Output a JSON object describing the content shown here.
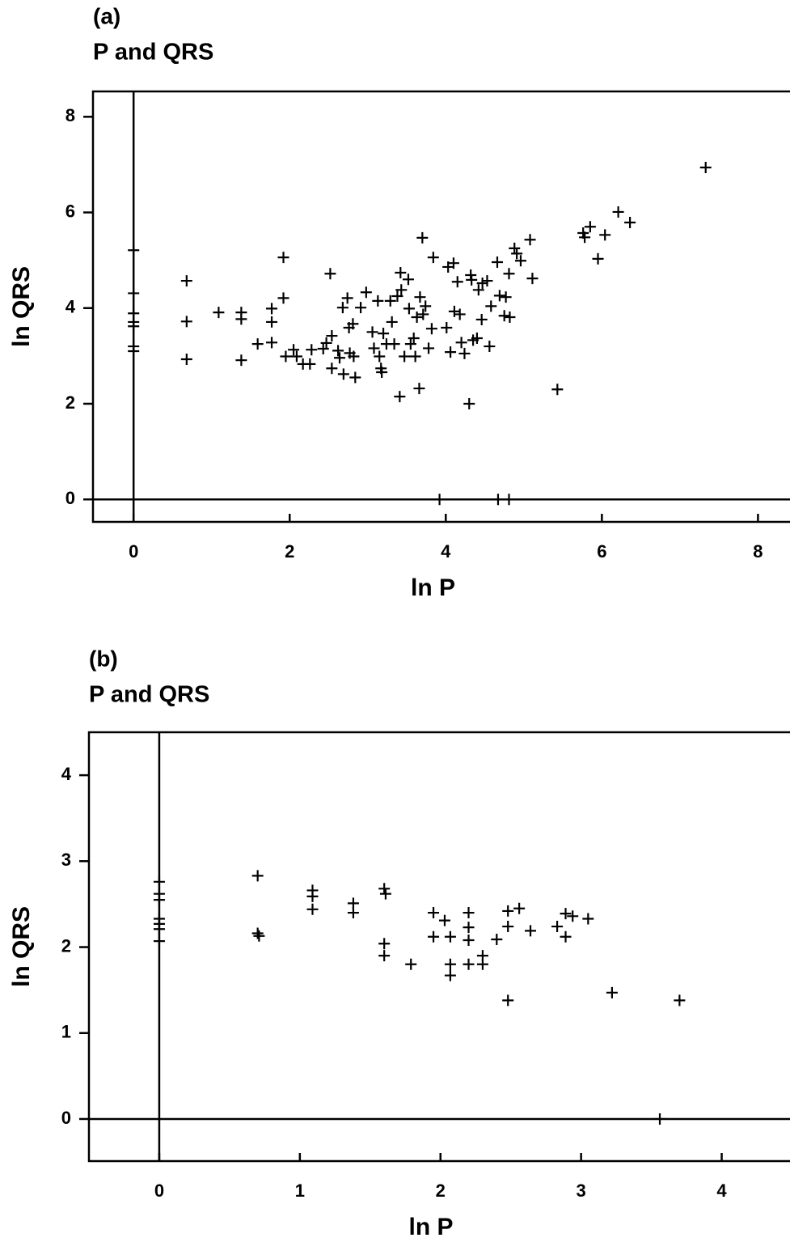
{
  "chart_data": [
    {
      "type": "scatter",
      "panel_label": "(a)",
      "title": "P and QRS",
      "xlabel": "ln P",
      "ylabel": "ln QRS",
      "xlim": [
        -0.52,
        8.4
      ],
      "ylim": [
        -0.47,
        8.53
      ],
      "xticks": [
        0,
        2,
        4,
        6,
        8
      ],
      "yticks": [
        0,
        2,
        4,
        6,
        8
      ],
      "zero_lines": true,
      "color": "#000000",
      "x": [
        0,
        0,
        0,
        0,
        0,
        0,
        0,
        0.68,
        0.68,
        0.68,
        1.09,
        1.38,
        1.38,
        1.38,
        1.59,
        1.77,
        1.77,
        1.77,
        1.92,
        1.92,
        1.95,
        2.05,
        2.09,
        2.17,
        2.28,
        2.26,
        2.43,
        2.47,
        2.52,
        2.54,
        2.54,
        2.62,
        2.64,
        2.68,
        2.69,
        2.74,
        2.76,
        2.77,
        2.81,
        2.82,
        2.84,
        2.91,
        2.98,
        3.06,
        3.08,
        3.13,
        3.15,
        3.17,
        3.18,
        3.2,
        3.24,
        3.29,
        3.31,
        3.34,
        3.38,
        3.41,
        3.42,
        3.43,
        3.47,
        3.52,
        3.53,
        3.55,
        3.59,
        3.61,
        3.63,
        3.66,
        3.67,
        3.7,
        3.71,
        3.74,
        3.78,
        3.82,
        3.84,
        4.01,
        4.03,
        4.06,
        4.1,
        4.11,
        4.15,
        4.18,
        4.2,
        4.24,
        4.3,
        4.32,
        4.33,
        4.35,
        4.4,
        4.42,
        4.46,
        4.47,
        4.53,
        4.56,
        4.58,
        4.66,
        4.69,
        4.75,
        4.77,
        4.81,
        4.82,
        4.88,
        4.91,
        4.96,
        5.08,
        5.11,
        5.43,
        5.76,
        5.78,
        5.85,
        5.95,
        6.04,
        6.21,
        6.36,
        7.33,
        3.92,
        4.67,
        4.81
      ],
      "y": [
        5.21,
        4.31,
        3.89,
        3.71,
        3.62,
        3.2,
        3.1,
        4.57,
        3.72,
        2.93,
        3.91,
        3.91,
        3.77,
        2.91,
        3.25,
        3.99,
        3.71,
        3.28,
        5.06,
        4.21,
        2.99,
        3.13,
        2.99,
        2.83,
        3.13,
        2.83,
        3.15,
        3.27,
        4.72,
        3.42,
        2.74,
        3.11,
        2.96,
        4.01,
        2.62,
        4.21,
        3.59,
        3.06,
        3.67,
        2.99,
        2.55,
        4.01,
        4.33,
        3.5,
        3.16,
        4.15,
        2.99,
        2.74,
        2.66,
        3.47,
        3.25,
        4.15,
        3.71,
        3.25,
        4.25,
        2.15,
        4.74,
        4.38,
        2.99,
        4.6,
        3.99,
        3.25,
        3.37,
        2.99,
        3.81,
        2.32,
        4.23,
        5.47,
        3.87,
        4.04,
        3.16,
        3.57,
        5.06,
        3.59,
        4.86,
        3.08,
        4.94,
        3.93,
        4.55,
        3.87,
        3.28,
        3.05,
        2.0,
        4.69,
        4.59,
        3.33,
        3.37,
        4.38,
        3.76,
        4.52,
        4.57,
        3.2,
        4.04,
        4.96,
        4.26,
        3.84,
        4.23,
        4.72,
        3.81,
        5.25,
        5.14,
        4.99,
        5.43,
        4.62,
        2.3,
        5.57,
        5.48,
        5.7,
        5.03,
        5.53,
        6.01,
        5.79,
        6.94,
        0,
        0,
        0
      ]
    },
    {
      "type": "scatter",
      "panel_label": "(b)",
      "title": "P and QRS",
      "xlabel": "ln P",
      "ylabel": "ln QRS",
      "xlim": [
        -0.5,
        4.48
      ],
      "ylim": [
        -0.49,
        4.5
      ],
      "xticks": [
        0,
        1,
        2,
        3,
        4
      ],
      "yticks": [
        0,
        1,
        2,
        3,
        4
      ],
      "zero_lines": true,
      "color": "#000000",
      "x": [
        0,
        0,
        0,
        0,
        0,
        0,
        0,
        0.7,
        0.7,
        0.71,
        1.09,
        1.09,
        1.09,
        1.38,
        1.38,
        1.6,
        1.61,
        1.6,
        1.6,
        1.79,
        1.95,
        1.95,
        2.03,
        2.07,
        2.07,
        2.07,
        2.2,
        2.2,
        2.2,
        2.2,
        2.3,
        2.3,
        2.4,
        2.48,
        2.48,
        2.48,
        2.56,
        2.64,
        2.83,
        2.89,
        2.89,
        2.94,
        3.05,
        3.22,
        3.7,
        3.56
      ],
      "y": [
        2.76,
        2.62,
        2.55,
        2.33,
        2.27,
        2.21,
        2.07,
        2.83,
        2.16,
        2.13,
        2.66,
        2.59,
        2.44,
        2.51,
        2.4,
        2.68,
        2.62,
        2.04,
        1.9,
        1.8,
        2.4,
        2.12,
        2.31,
        2.12,
        1.8,
        1.67,
        2.4,
        2.23,
        2.08,
        1.8,
        1.9,
        1.8,
        2.09,
        2.42,
        2.24,
        1.38,
        2.45,
        2.19,
        2.24,
        2.12,
        2.39,
        2.36,
        2.33,
        1.47,
        1.38,
        0
      ]
    }
  ]
}
